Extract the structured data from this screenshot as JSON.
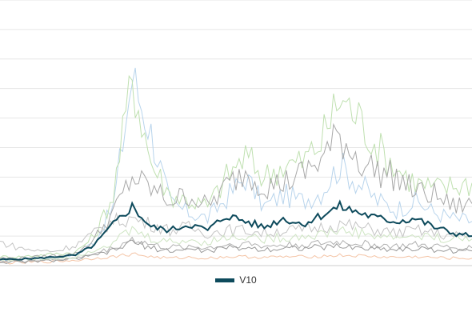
{
  "chart_data": {
    "type": "line",
    "title": "",
    "xlabel": "",
    "ylabel": "",
    "ylim": [
      0,
      9
    ],
    "grid": true,
    "legend_placement": "bottom-center",
    "x": [
      0,
      4,
      8,
      12,
      16,
      20,
      24,
      28,
      32,
      36,
      40,
      44,
      48,
      52,
      56,
      60,
      64,
      68,
      72,
      76,
      80,
      84,
      88,
      92,
      96,
      100
    ],
    "highlight_series": {
      "name": "V10",
      "color": "#0d4a5c",
      "values": [
        0.2,
        0.22,
        0.25,
        0.3,
        0.35,
        0.7,
        1.4,
        2.0,
        1.3,
        1.2,
        1.4,
        1.2,
        1.7,
        1.5,
        1.3,
        1.6,
        1.4,
        1.7,
        2.0,
        1.8,
        1.6,
        1.5,
        1.6,
        1.3,
        1.1,
        1.0
      ]
    },
    "background_series": [
      {
        "color": "#b8d4ec",
        "values": [
          0.2,
          0.2,
          0.25,
          0.3,
          0.35,
          0.8,
          2.0,
          6.4,
          4.5,
          2.1,
          1.8,
          1.6,
          2.3,
          3.0,
          2.0,
          2.4,
          2.2,
          2.5,
          3.4,
          2.8,
          2.2,
          1.9,
          2.2,
          1.8,
          1.6,
          1.5
        ]
      },
      {
        "color": "#bfe0b0",
        "values": [
          0.3,
          0.3,
          0.35,
          0.4,
          0.45,
          1.0,
          2.4,
          6.4,
          3.5,
          2.4,
          2.2,
          2.0,
          3.0,
          3.7,
          3.0,
          3.4,
          3.5,
          4.2,
          5.7,
          5.0,
          4.0,
          3.3,
          2.8,
          2.6,
          2.7,
          2.8
        ]
      },
      {
        "color": "#a8a8a8",
        "values": [
          0.25,
          0.25,
          0.3,
          0.35,
          0.4,
          0.9,
          1.8,
          3.0,
          2.6,
          2.2,
          2.4,
          2.0,
          2.7,
          3.2,
          2.7,
          2.8,
          3.1,
          3.6,
          4.4,
          3.6,
          3.2,
          3.0,
          2.5,
          2.4,
          2.0,
          2.1
        ]
      },
      {
        "color": "#c4c4c4",
        "values": [
          0.8,
          0.6,
          0.5,
          0.5,
          0.7,
          1.1,
          1.5,
          1.6,
          1.4,
          1.2,
          1.3,
          1.1,
          1.2,
          1.2,
          1.1,
          1.2,
          1.2,
          1.3,
          1.4,
          1.3,
          1.2,
          1.1,
          1.2,
          1.1,
          1.0,
          1.0
        ]
      },
      {
        "color": "#f4c4a6",
        "values": [
          0.1,
          0.1,
          0.12,
          0.15,
          0.18,
          0.25,
          0.3,
          0.4,
          0.3,
          0.25,
          0.28,
          0.25,
          0.3,
          0.3,
          0.28,
          0.3,
          0.3,
          0.32,
          0.35,
          0.33,
          0.3,
          0.28,
          0.3,
          0.27,
          0.25,
          0.25
        ]
      },
      {
        "color": "#b0b0b0",
        "values": [
          0.15,
          0.15,
          0.18,
          0.2,
          0.25,
          0.4,
          0.6,
          0.9,
          0.7,
          0.6,
          0.65,
          0.6,
          0.7,
          0.75,
          0.65,
          0.7,
          0.7,
          0.75,
          0.8,
          0.75,
          0.7,
          0.65,
          0.7,
          0.65,
          0.6,
          0.6
        ]
      },
      {
        "color": "#9a9a9a",
        "values": [
          0.12,
          0.12,
          0.15,
          0.18,
          0.22,
          0.35,
          0.5,
          0.8,
          0.6,
          0.5,
          0.55,
          0.5,
          0.6,
          0.6,
          0.55,
          0.6,
          0.6,
          0.62,
          0.65,
          0.6,
          0.58,
          0.55,
          0.57,
          0.54,
          0.5,
          0.5
        ]
      },
      {
        "color": "#cfe5c4",
        "values": [
          0.2,
          0.2,
          0.22,
          0.25,
          0.3,
          0.55,
          0.8,
          1.2,
          0.9,
          0.8,
          0.85,
          0.8,
          0.95,
          1.0,
          0.9,
          0.95,
          1.0,
          1.05,
          1.2,
          1.1,
          1.0,
          0.95,
          1.0,
          0.95,
          0.9,
          0.9
        ]
      }
    ]
  }
}
